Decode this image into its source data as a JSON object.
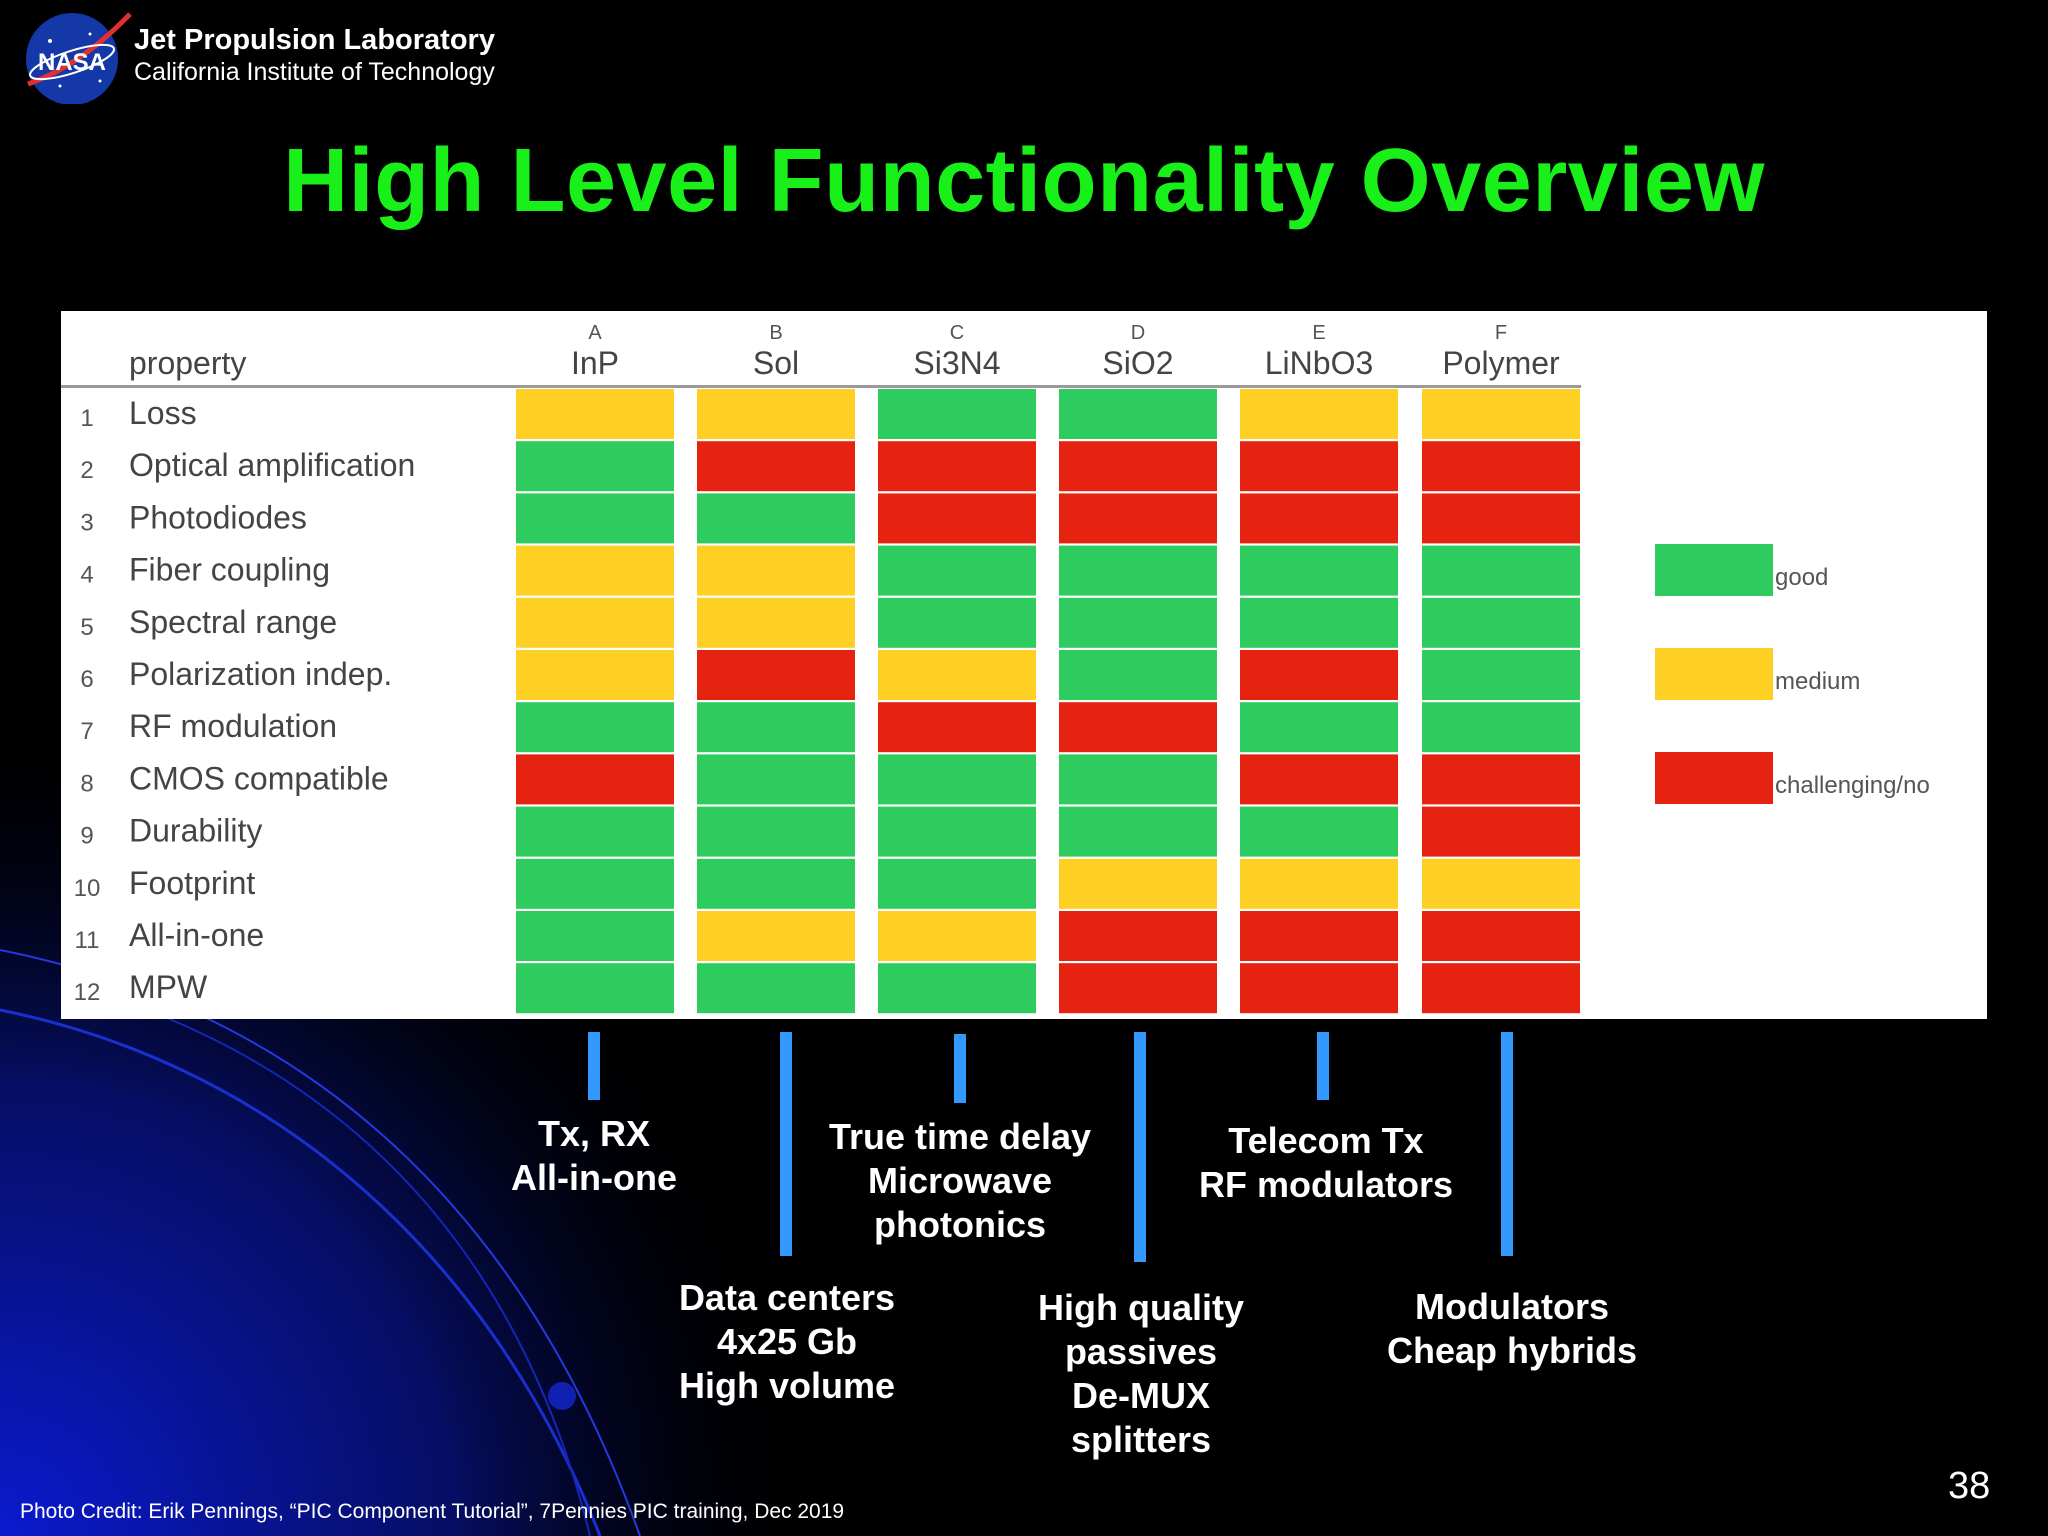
{
  "header": {
    "org_title": "Jet Propulsion Laboratory",
    "org_subtitle": "California Institute of Technology",
    "logo_text": "NASA"
  },
  "title": "High Level Functionality Overview",
  "chart_data": {
    "type": "heatmap",
    "row_header": "property",
    "column_letters": [
      "A",
      "B",
      "C",
      "D",
      "E",
      "F"
    ],
    "columns": [
      "InP",
      "Sol",
      "Si3N4",
      "SiO2",
      "LiNbO3",
      "Polymer"
    ],
    "row_numbers": [
      "1",
      "2",
      "3",
      "4",
      "5",
      "6",
      "7",
      "8",
      "9",
      "10",
      "11",
      "12"
    ],
    "rows": [
      "Loss",
      "Optical amplification",
      "Photodiodes",
      "Fiber coupling",
      "Spectral range",
      "Polarization indep.",
      "RF modulation",
      "CMOS compatible",
      "Durability",
      "Footprint",
      "All-in-one",
      "MPW"
    ],
    "values": [
      [
        "medium",
        "medium",
        "good",
        "good",
        "medium",
        "medium"
      ],
      [
        "good",
        "challenging/no",
        "challenging/no",
        "challenging/no",
        "challenging/no",
        "challenging/no"
      ],
      [
        "good",
        "good",
        "challenging/no",
        "challenging/no",
        "challenging/no",
        "challenging/no"
      ],
      [
        "medium",
        "medium",
        "good",
        "good",
        "good",
        "good"
      ],
      [
        "medium",
        "medium",
        "good",
        "good",
        "good",
        "good"
      ],
      [
        "medium",
        "challenging/no",
        "medium",
        "good",
        "challenging/no",
        "good"
      ],
      [
        "good",
        "good",
        "challenging/no",
        "challenging/no",
        "good",
        "good"
      ],
      [
        "challenging/no",
        "good",
        "good",
        "good",
        "challenging/no",
        "challenging/no"
      ],
      [
        "good",
        "good",
        "good",
        "good",
        "good",
        "challenging/no"
      ],
      [
        "good",
        "good",
        "good",
        "medium",
        "medium",
        "medium"
      ],
      [
        "good",
        "medium",
        "medium",
        "challenging/no",
        "challenging/no",
        "challenging/no"
      ],
      [
        "good",
        "good",
        "good",
        "challenging/no",
        "challenging/no",
        "challenging/no"
      ]
    ],
    "legend": [
      {
        "label": "good",
        "color": "#2ecc5e"
      },
      {
        "label": "medium",
        "color": "#ffd024"
      },
      {
        "label": "challenging/no",
        "color": "#e62310"
      }
    ],
    "legend_placement": "right"
  },
  "use_cases": [
    {
      "column": "InP",
      "text": "Tx, RX\nAll-in-one"
    },
    {
      "column": "Sol",
      "text": "Data centers\n4x25 Gb\nHigh volume"
    },
    {
      "column": "Si3N4",
      "text": "True time delay\nMicrowave\nphotonics"
    },
    {
      "column": "SiO2",
      "text": "High quality\npassives\nDe-MUX\nsplitters"
    },
    {
      "column": "LiNbO3",
      "text": "Telecom Tx\nRF modulators"
    },
    {
      "column": "Polymer",
      "text": "Modulators\nCheap hybrids"
    }
  ],
  "connector_color": "#3399ff",
  "footer": {
    "caption": "Photo Credit: Erik Pennings, “PIC Component Tutorial”,  7Pennies PIC training, Dec 2019",
    "page_number": "38"
  },
  "colors": {
    "title": "#19f019",
    "background": "#000000",
    "decor": "#0b1aa8"
  }
}
